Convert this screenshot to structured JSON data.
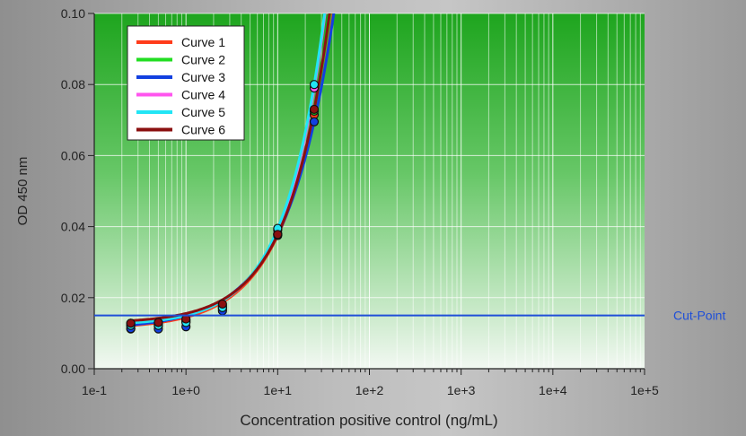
{
  "chart_data": {
    "type": "line",
    "title": "",
    "xlabel": "Concentration positive control (ng/mL)",
    "ylabel": "OD 450 nm",
    "xscale": "log",
    "xlim": [
      0.1,
      100000
    ],
    "ylim": [
      0,
      0.1
    ],
    "grid": true,
    "legend_position": "top-left",
    "background": "green gradient",
    "x_tick_labels": [
      "1e-1",
      "1e+0",
      "1e+1",
      "1e+2",
      "1e+3",
      "1e+4",
      "1e+5"
    ],
    "y_tick_labels": [
      "0.00",
      "0.02",
      "0.04",
      "0.06",
      "0.08",
      "0.10"
    ],
    "y_ticks": [
      0,
      0.02,
      0.04,
      0.06,
      0.08,
      0.1
    ],
    "x_tick_values": [
      0.1,
      1,
      10,
      100,
      1000,
      10000,
      100000
    ],
    "reference_line": {
      "label": "Cut-Point",
      "y": 0.015,
      "color": "#1f4fd8"
    },
    "series": [
      {
        "name": "Curve 1",
        "color": "#ff3b1a",
        "x": [
          0.25,
          0.5,
          1,
          2.5,
          10,
          25
        ],
        "y": [
          0.0112,
          0.012,
          0.0132,
          0.0168,
          0.0375,
          0.0715
        ]
      },
      {
        "name": "Curve 2",
        "color": "#22dd22",
        "x": [
          0.25,
          0.5,
          1,
          2.5,
          10,
          25
        ],
        "y": [
          0.0121,
          0.0125,
          0.0135,
          0.0172,
          0.038,
          0.0725
        ]
      },
      {
        "name": "Curve 3",
        "color": "#1240e0",
        "x": [
          0.25,
          0.5,
          1,
          2.5,
          10,
          25
        ],
        "y": [
          0.0113,
          0.0112,
          0.0118,
          0.0163,
          0.0378,
          0.0695
        ]
      },
      {
        "name": "Curve 4",
        "color": "#ff55ee",
        "x": [
          0.25,
          0.5,
          1,
          2.5,
          10,
          25
        ],
        "y": [
          0.0128,
          0.013,
          0.0138,
          0.0178,
          0.039,
          0.079
        ]
      },
      {
        "name": "Curve 5",
        "color": "#22e5f5",
        "x": [
          0.25,
          0.5,
          1,
          2.5,
          10,
          25
        ],
        "y": [
          0.0122,
          0.0122,
          0.013,
          0.0172,
          0.0395,
          0.08
        ]
      },
      {
        "name": "Curve 6",
        "color": "#8b1010",
        "x": [
          0.25,
          0.5,
          1,
          2.5,
          10,
          25
        ],
        "y": [
          0.0128,
          0.013,
          0.014,
          0.0182,
          0.0378,
          0.073
        ]
      }
    ]
  }
}
